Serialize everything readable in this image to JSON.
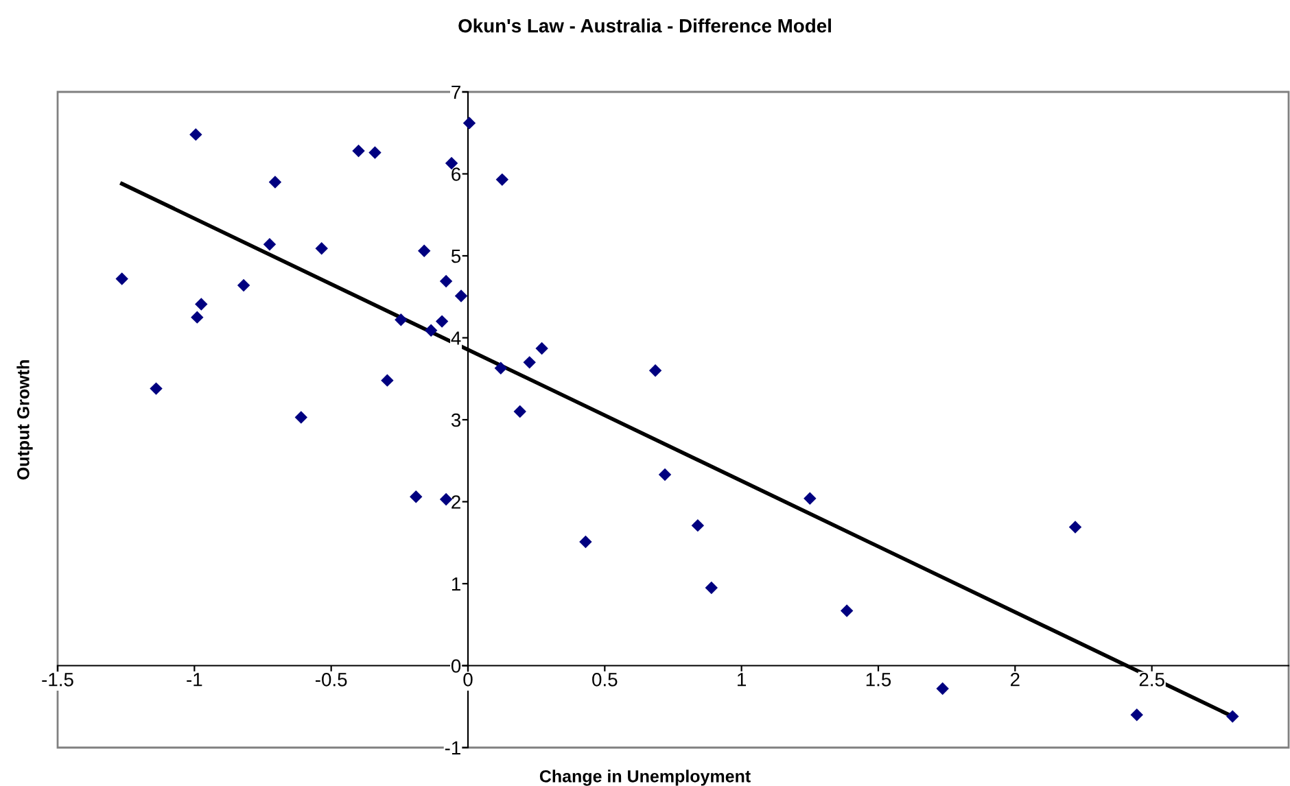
{
  "chart_data": {
    "type": "scatter",
    "title": "Okun's Law - Australia - Difference Model",
    "xlabel": "Change in Unemployment",
    "ylabel": "Output Growth",
    "xlim": [
      -1.5,
      3
    ],
    "xticks": [
      -1.5,
      -1,
      -0.5,
      0,
      0.5,
      1,
      1.5,
      2,
      2.5
    ],
    "ylim": [
      -1,
      7
    ],
    "yticks": [
      -1,
      0,
      1,
      2,
      3,
      4,
      5,
      6,
      7
    ],
    "grid": false,
    "legend": false,
    "series": [
      {
        "type": "scatter",
        "color": "#000080",
        "marker": "diamond",
        "x": [
          -1.265,
          -1.14,
          -0.995,
          -0.99,
          -0.975,
          -0.82,
          -0.725,
          -0.705,
          -0.61,
          -0.535,
          -0.4,
          -0.34,
          -0.295,
          -0.245,
          -0.19,
          -0.16,
          -0.135,
          -0.095,
          -0.08,
          -0.08,
          -0.06,
          -0.025,
          0.005,
          0.125,
          0.12,
          0.225,
          0.27,
          0.19,
          0.43,
          0.685,
          0.72,
          0.84,
          0.89,
          1.25,
          1.385,
          1.735,
          2.22,
          2.445,
          2.795
        ],
        "values": [
          4.72,
          3.38,
          6.48,
          4.25,
          4.41,
          4.64,
          5.14,
          5.9,
          3.03,
          5.09,
          6.28,
          6.26,
          3.48,
          4.22,
          2.06,
          5.06,
          4.09,
          4.2,
          4.69,
          2.03,
          6.13,
          4.51,
          6.62,
          5.93,
          3.63,
          3.7,
          3.87,
          3.1,
          1.51,
          3.6,
          2.33,
          1.71,
          0.95,
          2.04,
          0.67,
          -0.28,
          1.69,
          -0.6,
          -0.62
        ]
      },
      {
        "type": "line",
        "color": "#000000",
        "marker": "none",
        "line_style": "solid",
        "x": [
          -1.265,
          2.795
        ],
        "values": [
          5.88,
          -0.62
        ]
      }
    ]
  }
}
